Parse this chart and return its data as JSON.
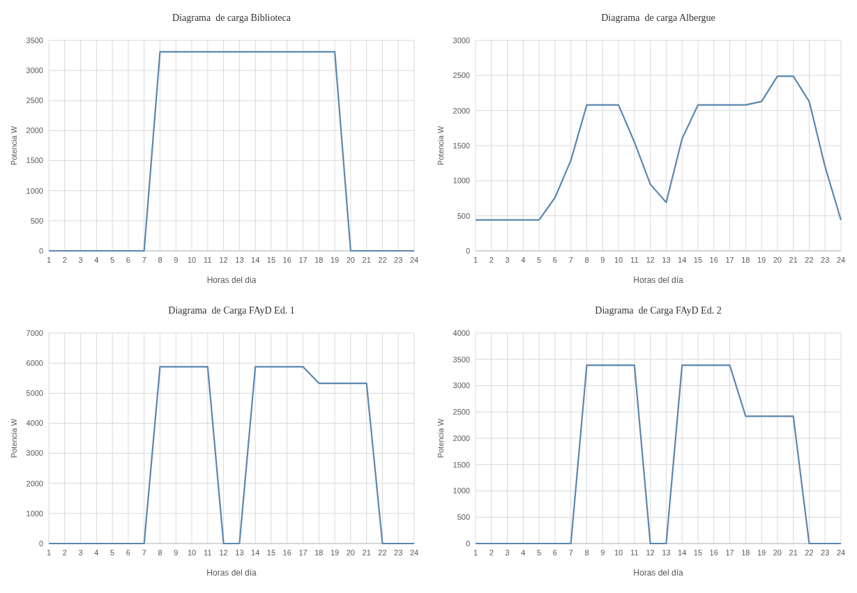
{
  "chart_data": [
    {
      "type": "line",
      "title": "Diagrama  de carga Biblioteca",
      "xlabel": "Horas del dia",
      "ylabel": "Potencia W",
      "x": [
        1,
        2,
        3,
        4,
        5,
        6,
        7,
        8,
        9,
        10,
        11,
        12,
        13,
        14,
        15,
        16,
        17,
        18,
        19,
        20,
        21,
        22,
        23,
        24
      ],
      "xlim": [
        1,
        24
      ],
      "xticks": [
        1,
        2,
        3,
        4,
        5,
        6,
        7,
        8,
        9,
        10,
        11,
        12,
        13,
        14,
        15,
        16,
        17,
        18,
        19,
        20,
        21,
        22,
        23,
        24
      ],
      "ylim": [
        0,
        3500
      ],
      "yticks": [
        0,
        500,
        1000,
        1500,
        2000,
        2500,
        3000,
        3500
      ],
      "grid": true,
      "marker": "none",
      "line_style": "solid",
      "series": [
        {
          "color": "#5b87b0",
          "values": [
            0,
            0,
            0,
            0,
            0,
            0,
            0,
            3310,
            3310,
            3310,
            3310,
            3310,
            3310,
            3310,
            3310,
            3310,
            3310,
            3310,
            3310,
            0,
            0,
            0,
            0,
            0
          ]
        }
      ]
    },
    {
      "type": "line",
      "title": "Diagrama  de carga Albergue",
      "xlabel": "Horas del día",
      "ylabel": "Potencia W",
      "x": [
        1,
        2,
        3,
        4,
        5,
        6,
        7,
        8,
        9,
        10,
        11,
        12,
        13,
        14,
        15,
        16,
        17,
        18,
        19,
        20,
        21,
        22,
        23,
        24
      ],
      "xlim": [
        1,
        24
      ],
      "xticks": [
        1,
        2,
        3,
        4,
        5,
        6,
        7,
        8,
        9,
        10,
        11,
        12,
        13,
        14,
        15,
        16,
        17,
        18,
        19,
        20,
        21,
        22,
        23,
        24
      ],
      "ylim": [
        0,
        3000
      ],
      "yticks": [
        0,
        500,
        1000,
        1500,
        2000,
        2500,
        3000
      ],
      "grid": true,
      "marker": "none",
      "line_style": "solid",
      "series": [
        {
          "color": "#5b87b0",
          "values": [
            440,
            440,
            440,
            440,
            440,
            760,
            1290,
            2080,
            2080,
            2080,
            1550,
            950,
            690,
            1600,
            2080,
            2080,
            2080,
            2080,
            2130,
            2490,
            2490,
            2130,
            1200,
            440
          ]
        }
      ]
    },
    {
      "type": "line",
      "title": "Diagrama  de Carga FAyD Ed. 1",
      "xlabel": "Horas del día",
      "ylabel": "Potencia W",
      "x": [
        1,
        2,
        3,
        4,
        5,
        6,
        7,
        8,
        9,
        10,
        11,
        12,
        13,
        14,
        15,
        16,
        17,
        18,
        19,
        20,
        21,
        22,
        23,
        24
      ],
      "xlim": [
        1,
        24
      ],
      "xticks": [
        1,
        2,
        3,
        4,
        5,
        6,
        7,
        8,
        9,
        10,
        11,
        12,
        13,
        14,
        15,
        16,
        17,
        18,
        19,
        20,
        21,
        22,
        23,
        24
      ],
      "ylim": [
        0,
        7000
      ],
      "yticks": [
        0,
        1000,
        2000,
        3000,
        4000,
        5000,
        6000,
        7000
      ],
      "grid": true,
      "marker": "none",
      "line_style": "solid",
      "series": [
        {
          "color": "#5b87b0",
          "values": [
            0,
            0,
            0,
            0,
            0,
            0,
            0,
            5880,
            5880,
            5880,
            5880,
            0,
            0,
            5880,
            5880,
            5880,
            5880,
            5330,
            5330,
            5330,
            5330,
            0,
            0,
            0
          ]
        }
      ]
    },
    {
      "type": "line",
      "title": "Diagrama  de Carga FAyD Ed. 2",
      "xlabel": "Horas del día",
      "ylabel": "Potencia W",
      "x": [
        1,
        2,
        3,
        4,
        5,
        6,
        7,
        8,
        9,
        10,
        11,
        12,
        13,
        14,
        15,
        16,
        17,
        18,
        19,
        20,
        21,
        22,
        23,
        24
      ],
      "xlim": [
        1,
        24
      ],
      "xticks": [
        1,
        2,
        3,
        4,
        5,
        6,
        7,
        8,
        9,
        10,
        11,
        12,
        13,
        14,
        15,
        16,
        17,
        18,
        19,
        20,
        21,
        22,
        23,
        24
      ],
      "ylim": [
        0,
        4000
      ],
      "yticks": [
        0,
        500,
        1000,
        1500,
        2000,
        2500,
        3000,
        3500,
        4000
      ],
      "grid": true,
      "marker": "none",
      "line_style": "solid",
      "series": [
        {
          "color": "#5b87b0",
          "values": [
            0,
            0,
            0,
            0,
            0,
            0,
            0,
            3390,
            3390,
            3390,
            3390,
            0,
            0,
            3390,
            3390,
            3390,
            3390,
            2420,
            2420,
            2420,
            2420,
            0,
            0,
            0
          ]
        }
      ]
    }
  ]
}
